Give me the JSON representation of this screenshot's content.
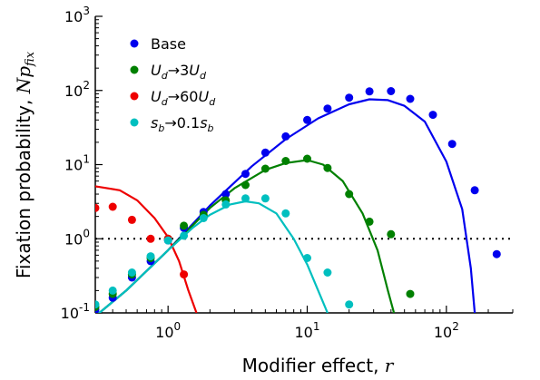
{
  "chart_data": {
    "type": "scatter",
    "xscale": "log",
    "yscale": "log",
    "xlim": [
      0.3,
      300
    ],
    "ylim": [
      0.1,
      1000
    ],
    "xlabel": "Modifier effect, r",
    "ylabel": "Fixation probability, Np_fix",
    "x_ticks": [
      {
        "value": 1,
        "base": "10",
        "exp": "0"
      },
      {
        "value": 10,
        "base": "10",
        "exp": "1"
      },
      {
        "value": 100,
        "base": "10",
        "exp": "2"
      }
    ],
    "y_ticks": [
      {
        "value": 0.1,
        "base": "10",
        "exp": "-1"
      },
      {
        "value": 1,
        "base": "10",
        "exp": "0"
      },
      {
        "value": 10,
        "base": "10",
        "exp": "1"
      },
      {
        "value": 100,
        "base": "10",
        "exp": "2"
      },
      {
        "value": 1000,
        "base": "10",
        "exp": "3"
      }
    ],
    "reference_line": {
      "y": 1,
      "style": "dotted",
      "x_range": [
        0.3,
        300
      ]
    },
    "grid": false,
    "legend_position": "top-left",
    "series": [
      {
        "name": "Base",
        "legend_label": "Base",
        "color": "#0000ee",
        "points": [
          [
            0.3,
            0.11
          ],
          [
            0.4,
            0.16
          ],
          [
            0.55,
            0.3
          ],
          [
            0.75,
            0.5
          ],
          [
            1.0,
            0.95
          ],
          [
            1.3,
            1.4
          ],
          [
            1.8,
            2.3
          ],
          [
            2.6,
            4.0
          ],
          [
            3.6,
            7.5
          ],
          [
            5.0,
            14.5
          ],
          [
            7.0,
            24
          ],
          [
            10,
            40
          ],
          [
            14,
            57
          ],
          [
            20,
            80
          ],
          [
            28,
            97
          ],
          [
            40,
            98
          ],
          [
            55,
            77
          ],
          [
            80,
            47
          ],
          [
            110,
            19
          ],
          [
            160,
            4.5
          ],
          [
            230,
            0.62
          ]
        ],
        "curve": [
          [
            0.3,
            0.09
          ],
          [
            0.5,
            0.2
          ],
          [
            1,
            0.7
          ],
          [
            2,
            2.8
          ],
          [
            4,
            9.5
          ],
          [
            7,
            22
          ],
          [
            12,
            42
          ],
          [
            20,
            65
          ],
          [
            28,
            76
          ],
          [
            38,
            74
          ],
          [
            50,
            62
          ],
          [
            70,
            38
          ],
          [
            100,
            11
          ],
          [
            130,
            2.5
          ],
          [
            150,
            0.4
          ],
          [
            160,
            0.1
          ]
        ]
      },
      {
        "name": "U_d → 3U_d",
        "legend_label": "Ud→3Ud",
        "color": "#008000",
        "points": [
          [
            0.3,
            0.12
          ],
          [
            0.4,
            0.18
          ],
          [
            0.55,
            0.33
          ],
          [
            0.75,
            0.55
          ],
          [
            1.0,
            1.0
          ],
          [
            1.3,
            1.5
          ],
          [
            1.8,
            2.1
          ],
          [
            2.6,
            3.3
          ],
          [
            3.6,
            5.3
          ],
          [
            5.0,
            8.8
          ],
          [
            7.0,
            11.2
          ],
          [
            10,
            12
          ],
          [
            14,
            9.0
          ],
          [
            20,
            4.0
          ],
          [
            28,
            1.7
          ],
          [
            40,
            1.15
          ],
          [
            55,
            0.18
          ]
        ],
        "curve": [
          [
            0.3,
            0.09
          ],
          [
            0.5,
            0.2
          ],
          [
            1,
            0.7
          ],
          [
            2,
            2.6
          ],
          [
            3,
            4.8
          ],
          [
            5,
            8.5
          ],
          [
            7,
            10.5
          ],
          [
            10,
            11.5
          ],
          [
            13,
            10
          ],
          [
            18,
            6
          ],
          [
            25,
            2.2
          ],
          [
            32,
            0.7
          ],
          [
            38,
            0.2
          ],
          [
            42,
            0.1
          ]
        ]
      },
      {
        "name": "U_d → 60U_d",
        "legend_label": "Ud→60Ud",
        "color": "#ee0000",
        "points": [
          [
            0.3,
            2.6
          ],
          [
            0.4,
            2.7
          ],
          [
            0.55,
            1.8
          ],
          [
            0.75,
            1.0
          ],
          [
            1.0,
            1.0
          ],
          [
            1.3,
            0.33
          ]
        ],
        "curve": [
          [
            0.3,
            5.1
          ],
          [
            0.45,
            4.5
          ],
          [
            0.6,
            3.3
          ],
          [
            0.8,
            1.9
          ],
          [
            1.0,
            1.05
          ],
          [
            1.2,
            0.5
          ],
          [
            1.4,
            0.2
          ],
          [
            1.6,
            0.1
          ]
        ]
      },
      {
        "name": "s_b → 0.1s_b",
        "legend_label": "sb→0.1sb",
        "color": "#00bfbf",
        "points": [
          [
            0.3,
            0.13
          ],
          [
            0.4,
            0.2
          ],
          [
            0.55,
            0.35
          ],
          [
            0.75,
            0.58
          ],
          [
            1.0,
            0.95
          ],
          [
            1.3,
            1.1
          ],
          [
            1.8,
            1.9
          ],
          [
            2.6,
            2.9
          ],
          [
            3.6,
            3.5
          ],
          [
            5.0,
            3.5
          ],
          [
            7.0,
            2.2
          ],
          [
            10,
            0.55
          ],
          [
            14,
            0.35
          ],
          [
            20,
            0.13
          ]
        ],
        "curve": [
          [
            0.3,
            0.09
          ],
          [
            0.5,
            0.2
          ],
          [
            1,
            0.7
          ],
          [
            1.5,
            1.4
          ],
          [
            2,
            2.1
          ],
          [
            2.8,
            2.9
          ],
          [
            3.6,
            3.2
          ],
          [
            4.5,
            3.0
          ],
          [
            6,
            2.2
          ],
          [
            8,
            1.0
          ],
          [
            10,
            0.45
          ],
          [
            12,
            0.2
          ],
          [
            14,
            0.1
          ]
        ]
      }
    ]
  }
}
